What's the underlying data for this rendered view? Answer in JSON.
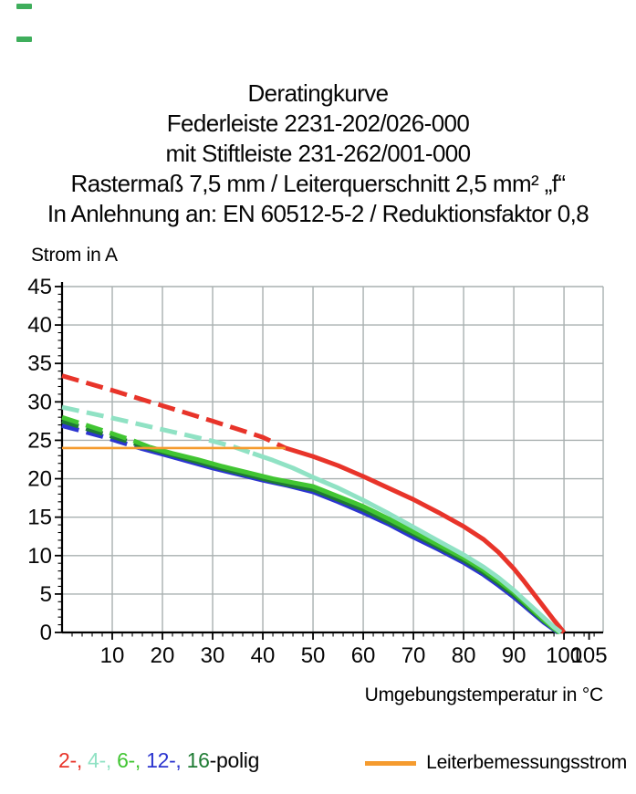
{
  "title": {
    "lines": [
      "Deratingkurve",
      "Federleiste 2231-202/026-000",
      "mit Stiftleiste 231-262/001-000",
      "Rastermaß 7,5 mm / Leiterquerschnitt 2,5 mm² „f“",
      "In Anlehnung an: EN 60512-5-2 / Reduktionsfaktor 0,8"
    ]
  },
  "axes": {
    "y_label": "Strom in A",
    "x_label": "Umgebungstemperatur in °C"
  },
  "legend": {
    "pole_entries": [
      {
        "label": "2-",
        "color": "#e8342a"
      },
      {
        "label": "4-",
        "color": "#90e2c4"
      },
      {
        "label": "6-",
        "color": "#41c532"
      },
      {
        "label": "12-",
        "color": "#2c35cf"
      },
      {
        "label": "16",
        "color": "#1e7b33"
      }
    ],
    "separator": ", ",
    "suffix": "-polig",
    "rated": {
      "label": "Leiterbemessungsstrom",
      "color": "#f59b2e"
    }
  },
  "colors": {
    "grid": "#a9b0b0",
    "axis": "#000000",
    "artifact": "#3fae5c",
    "background": "#ffffff"
  },
  "chart_data": {
    "type": "line",
    "title": "Deratingkurve",
    "xlabel": "Umgebungstemperatur in °C",
    "ylabel": "Strom in A",
    "xlim": [
      0,
      107.8
    ],
    "ylim": [
      0,
      45
    ],
    "grid": true,
    "legend_position": "bottom",
    "x_major_ticks": [
      10,
      20,
      30,
      40,
      50,
      60,
      70,
      80,
      90,
      100,
      105
    ],
    "y_major_ticks": [
      0,
      5,
      10,
      15,
      20,
      25,
      30,
      35,
      40,
      45
    ],
    "x_gridlines": [
      10,
      20,
      30,
      40,
      50,
      60,
      70,
      80,
      90,
      100
    ],
    "y_gridlines": [
      5,
      10,
      15,
      20,
      25,
      30,
      35,
      40,
      45
    ],
    "x_minor_step": 2,
    "y_minor_step": 1,
    "dash_note": "dashed segments lie above the conductor rated current of 24 A",
    "draw_order": [
      "2-polig",
      "12-polig",
      "16-polig",
      "6-polig",
      "4-polig",
      "Leiterbemessungsstrom"
    ],
    "series": [
      {
        "name": "2-polig",
        "color": "#e8342a",
        "dashed": [
          [
            0,
            33.4
          ],
          [
            10,
            31.5
          ],
          [
            20,
            29.5
          ],
          [
            30,
            27.5
          ],
          [
            40,
            25.4
          ],
          [
            44.5,
            24
          ]
        ],
        "solid": [
          [
            44.5,
            24
          ],
          [
            50,
            22.9
          ],
          [
            55,
            21.7
          ],
          [
            60,
            20.3
          ],
          [
            65,
            18.8
          ],
          [
            70,
            17.3
          ],
          [
            75,
            15.6
          ],
          [
            80,
            13.8
          ],
          [
            84,
            12.1
          ],
          [
            87,
            10.4
          ],
          [
            90,
            8.3
          ],
          [
            92,
            6.7
          ],
          [
            94,
            5.0
          ],
          [
            96,
            3.3
          ],
          [
            98,
            1.6
          ],
          [
            100,
            0
          ]
        ]
      },
      {
        "name": "4-polig",
        "color": "#90e2c4",
        "dashed": [
          [
            0,
            29.3
          ],
          [
            10,
            27.9
          ],
          [
            20,
            26.4
          ],
          [
            30,
            24.9
          ],
          [
            34,
            24.2
          ],
          [
            38,
            23.3
          ]
        ],
        "solid": [
          [
            38,
            23.3
          ],
          [
            42,
            22.4
          ],
          [
            46,
            21.4
          ],
          [
            50,
            20.2
          ],
          [
            55,
            18.8
          ],
          [
            60,
            17.2
          ],
          [
            65,
            15.5
          ],
          [
            70,
            13.7
          ],
          [
            75,
            11.9
          ],
          [
            80,
            10.1
          ],
          [
            84,
            8.5
          ],
          [
            87,
            7.1
          ],
          [
            90,
            5.5
          ],
          [
            92,
            4.3
          ],
          [
            94,
            3.1
          ],
          [
            96,
            1.9
          ],
          [
            98,
            0.7
          ],
          [
            99.4,
            0
          ]
        ]
      },
      {
        "name": "6-polig",
        "color": "#41c532",
        "dashed": [
          [
            0,
            28
          ],
          [
            8,
            26.3
          ],
          [
            14,
            25
          ],
          [
            17.5,
            24.1
          ]
        ],
        "solid": [
          [
            17.5,
            24.1
          ],
          [
            22,
            23.3
          ],
          [
            27,
            22.5
          ],
          [
            32,
            21.6
          ],
          [
            37,
            20.8
          ],
          [
            42,
            20
          ],
          [
            46,
            19.5
          ],
          [
            50,
            19
          ],
          [
            55,
            17.7
          ],
          [
            60,
            16.4
          ],
          [
            65,
            14.8
          ],
          [
            70,
            13.1
          ],
          [
            75,
            11.4
          ],
          [
            80,
            9.7
          ],
          [
            84,
            8.1
          ],
          [
            87,
            6.7
          ],
          [
            90,
            5.2
          ],
          [
            92,
            4.0
          ],
          [
            94,
            2.8
          ],
          [
            96,
            1.6
          ],
          [
            98,
            0.5
          ],
          [
            99.2,
            0
          ]
        ]
      },
      {
        "name": "12-polig",
        "color": "#2c35cf",
        "dashed": [
          [
            0,
            26.9
          ],
          [
            8,
            25.5
          ],
          [
            13,
            24.5
          ],
          [
            15.5,
            24
          ]
        ],
        "solid": [
          [
            15.5,
            24
          ],
          [
            20,
            23.2
          ],
          [
            25,
            22.3
          ],
          [
            30,
            21.4
          ],
          [
            35,
            20.6
          ],
          [
            40,
            19.8
          ],
          [
            45,
            19.1
          ],
          [
            50,
            18.3
          ],
          [
            55,
            17
          ],
          [
            60,
            15.6
          ],
          [
            65,
            14.1
          ],
          [
            70,
            12.4
          ],
          [
            75,
            10.8
          ],
          [
            80,
            9.1
          ],
          [
            84,
            7.5
          ],
          [
            87,
            6.1
          ],
          [
            90,
            4.6
          ],
          [
            92,
            3.5
          ],
          [
            94,
            2.4
          ],
          [
            96,
            1.3
          ],
          [
            98.8,
            0
          ]
        ]
      },
      {
        "name": "16-polig",
        "color": "#1e7b33",
        "dashed": [
          [
            0,
            27.5
          ],
          [
            8,
            25.9
          ],
          [
            14,
            24.7
          ],
          [
            17,
            24
          ]
        ],
        "solid": [
          [
            17,
            24
          ],
          [
            22,
            23.1
          ],
          [
            27,
            22.2
          ],
          [
            32,
            21.3
          ],
          [
            37,
            20.5
          ],
          [
            42,
            19.7
          ],
          [
            46,
            19.1
          ],
          [
            50,
            18.6
          ],
          [
            55,
            17.3
          ],
          [
            60,
            16
          ],
          [
            65,
            14.4
          ],
          [
            70,
            12.8
          ],
          [
            75,
            11.1
          ],
          [
            80,
            9.4
          ],
          [
            84,
            7.8
          ],
          [
            87,
            6.4
          ],
          [
            90,
            4.9
          ],
          [
            92,
            3.8
          ],
          [
            94,
            2.6
          ],
          [
            96,
            1.5
          ],
          [
            99,
            0
          ]
        ]
      },
      {
        "name": "Leiterbemessungsstrom",
        "color": "#f59b2e",
        "role": "rated-current",
        "solid": [
          [
            0,
            24
          ],
          [
            44.5,
            24
          ]
        ]
      }
    ]
  }
}
